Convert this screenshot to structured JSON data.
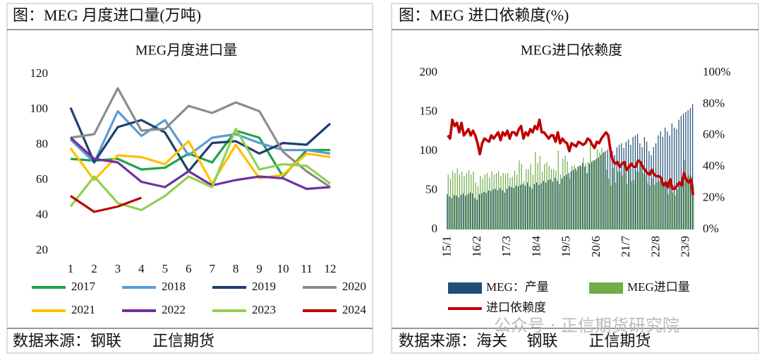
{
  "panels": [
    {
      "heading": "图：MEG 月度进口量(万吨)",
      "source": "数据来源：钢联　　正信期货"
    },
    {
      "heading": "图：MEG 进口依赖度(%)",
      "source": "数据来源：海关　 钢联　　正信期货"
    }
  ],
  "watermark": "公众号 · 正信期货研究院",
  "chart_data": [
    {
      "type": "line",
      "title": "MEG月度进口量",
      "categories": [
        "1",
        "2",
        "3",
        "4",
        "5",
        "6",
        "7",
        "8",
        "9",
        "10",
        "11",
        "12"
      ],
      "ylim": [
        20,
        120
      ],
      "yticks": [
        20,
        40,
        60,
        80,
        100,
        120
      ],
      "series": [
        {
          "name": "2017",
          "color": "#1aa64a",
          "values": [
            72,
            71,
            72,
            66,
            67,
            75,
            70,
            88,
            84,
            62,
            77,
            77
          ]
        },
        {
          "name": "2018",
          "color": "#5b9bd5",
          "values": [
            83,
            70,
            99,
            85,
            94,
            74,
            84,
            86,
            81,
            77,
            77,
            75
          ]
        },
        {
          "name": "2019",
          "color": "#1f3f6e",
          "values": [
            101,
            70,
            90,
            94,
            87,
            65,
            81,
            82,
            75,
            81,
            80,
            92
          ]
        },
        {
          "name": "2020",
          "color": "#8c8c8c",
          "values": [
            84,
            86,
            112,
            88,
            89,
            102,
            98,
            104,
            99,
            76,
            65,
            56
          ]
        },
        {
          "name": "2021",
          "color": "#ffc000",
          "values": [
            78,
            60,
            74,
            73,
            69,
            82,
            58,
            80,
            61,
            63,
            75,
            73
          ]
        },
        {
          "name": "2022",
          "color": "#7030a0",
          "values": [
            84,
            72,
            70,
            59,
            56,
            65,
            57,
            60,
            62,
            61,
            55,
            56
          ]
        },
        {
          "name": "2023",
          "color": "#92d050",
          "values": [
            45,
            62,
            47,
            43,
            51,
            62,
            56,
            89,
            66,
            69,
            68,
            58
          ]
        },
        {
          "name": "2024",
          "color": "#c00000",
          "values": [
            51,
            42,
            45,
            50,
            null,
            null,
            null,
            null,
            null,
            null,
            null,
            null
          ]
        }
      ]
    },
    {
      "type": "bar_line",
      "title": "MEG进口依赖度",
      "categories": [
        "15/1",
        null,
        null,
        null,
        null,
        null,
        null,
        null,
        null,
        null,
        null,
        null,
        null,
        "16/2",
        null,
        null,
        null,
        null,
        null,
        null,
        null,
        null,
        null,
        null,
        null,
        null,
        "17/3",
        null,
        null,
        null,
        null,
        null,
        null,
        null,
        null,
        null,
        null,
        null,
        null,
        "18/4",
        null,
        null,
        null,
        null,
        null,
        null,
        null,
        null,
        null,
        null,
        null,
        null,
        "19/5",
        null,
        null,
        null,
        null,
        null,
        null,
        null,
        null,
        null,
        null,
        null,
        null,
        "20/6",
        null,
        null,
        null,
        null,
        null,
        null,
        null,
        null,
        null,
        null,
        null,
        null,
        "21/7",
        null,
        null,
        null,
        null,
        null,
        null,
        null,
        null,
        null,
        null,
        null,
        null,
        "22/8",
        null,
        null,
        null,
        null,
        null,
        null,
        null,
        null,
        null,
        null,
        null,
        null,
        "23/9",
        null,
        null,
        null
      ],
      "ylim": [
        0,
        200
      ],
      "yticks": [
        0,
        50,
        100,
        150,
        200
      ],
      "y2lim": [
        0,
        100
      ],
      "y2ticks": [
        {
          "value": 0,
          "label": "0%"
        },
        {
          "value": 20,
          "label": "20%"
        },
        {
          "value": 40,
          "label": "40%"
        },
        {
          "value": 60,
          "label": "60%"
        },
        {
          "value": 80,
          "label": "80%"
        },
        {
          "value": 100,
          "label": "100%"
        }
      ],
      "series": [
        {
          "name": "MEG：产量",
          "kind": "bar",
          "color": "#1f4e79",
          "values": [
            45,
            42,
            40,
            44,
            43,
            41,
            44,
            46,
            43,
            45,
            47,
            46,
            40,
            38,
            45,
            46,
            48,
            47,
            50,
            49,
            51,
            52,
            50,
            53,
            50,
            47,
            52,
            55,
            54,
            53,
            56,
            55,
            57,
            58,
            56,
            60,
            55,
            52,
            58,
            60,
            57,
            59,
            62,
            60,
            63,
            64,
            61,
            66,
            62,
            58,
            65,
            68,
            70,
            72,
            74,
            76,
            78,
            80,
            82,
            85,
            80,
            72,
            84,
            86,
            88,
            90,
            92,
            95,
            98,
            100,
            102,
            105,
            100,
            95,
            105,
            108,
            110,
            104,
            112,
            115,
            108,
            118,
            120,
            122,
            110,
            105,
            118,
            112,
            100,
            95,
            105,
            110,
            120,
            125,
            118,
            130,
            125,
            120,
            135,
            130,
            128,
            140,
            145,
            148,
            150,
            152,
            155,
            160
          ]
        },
        {
          "name": "MEG进口量",
          "kind": "bar",
          "color": "#70ad47",
          "values": [
            70,
            65,
            75,
            72,
            78,
            70,
            74,
            68,
            72,
            76,
            70,
            74,
            60,
            55,
            68,
            65,
            70,
            72,
            66,
            74,
            70,
            72,
            75,
            68,
            72,
            71,
            72,
            66,
            67,
            75,
            70,
            88,
            84,
            62,
            77,
            77,
            83,
            70,
            99,
            85,
            94,
            74,
            84,
            86,
            81,
            77,
            77,
            75,
            101,
            70,
            90,
            94,
            87,
            65,
            81,
            82,
            75,
            81,
            80,
            92,
            84,
            86,
            112,
            88,
            89,
            102,
            98,
            104,
            99,
            76,
            65,
            56,
            78,
            60,
            74,
            73,
            69,
            82,
            58,
            80,
            61,
            63,
            75,
            73,
            84,
            72,
            70,
            59,
            56,
            65,
            57,
            60,
            62,
            61,
            55,
            56,
            45,
            62,
            47,
            43,
            51,
            62,
            56,
            89,
            66,
            69,
            68,
            58
          ]
        },
        {
          "name": "进口依赖度",
          "kind": "line",
          "axis": "y2",
          "color": "#c00000",
          "values": [
            60,
            58,
            70,
            66,
            68,
            62,
            68,
            60,
            62,
            64,
            60,
            63,
            60,
            55,
            48,
            55,
            58,
            57,
            56,
            60,
            58,
            60,
            62,
            57,
            62,
            60,
            63,
            58,
            62,
            62,
            60,
            64,
            66,
            58,
            62,
            60,
            64,
            62,
            66,
            64,
            70,
            62,
            62,
            60,
            58,
            60,
            60,
            56,
            62,
            55,
            58,
            56,
            55,
            50,
            55,
            54,
            53,
            56,
            55,
            54,
            55,
            58,
            57,
            54,
            52,
            56,
            55,
            58,
            60,
            62,
            60,
            50,
            44,
            42,
            43,
            40,
            42,
            43,
            38,
            40,
            42,
            40,
            40,
            44,
            43,
            40,
            38,
            36,
            35,
            38,
            35,
            34,
            34,
            33,
            28,
            30,
            27,
            32,
            26,
            26,
            28,
            30,
            28,
            36,
            32,
            30,
            32,
            22
          ]
        }
      ]
    }
  ]
}
